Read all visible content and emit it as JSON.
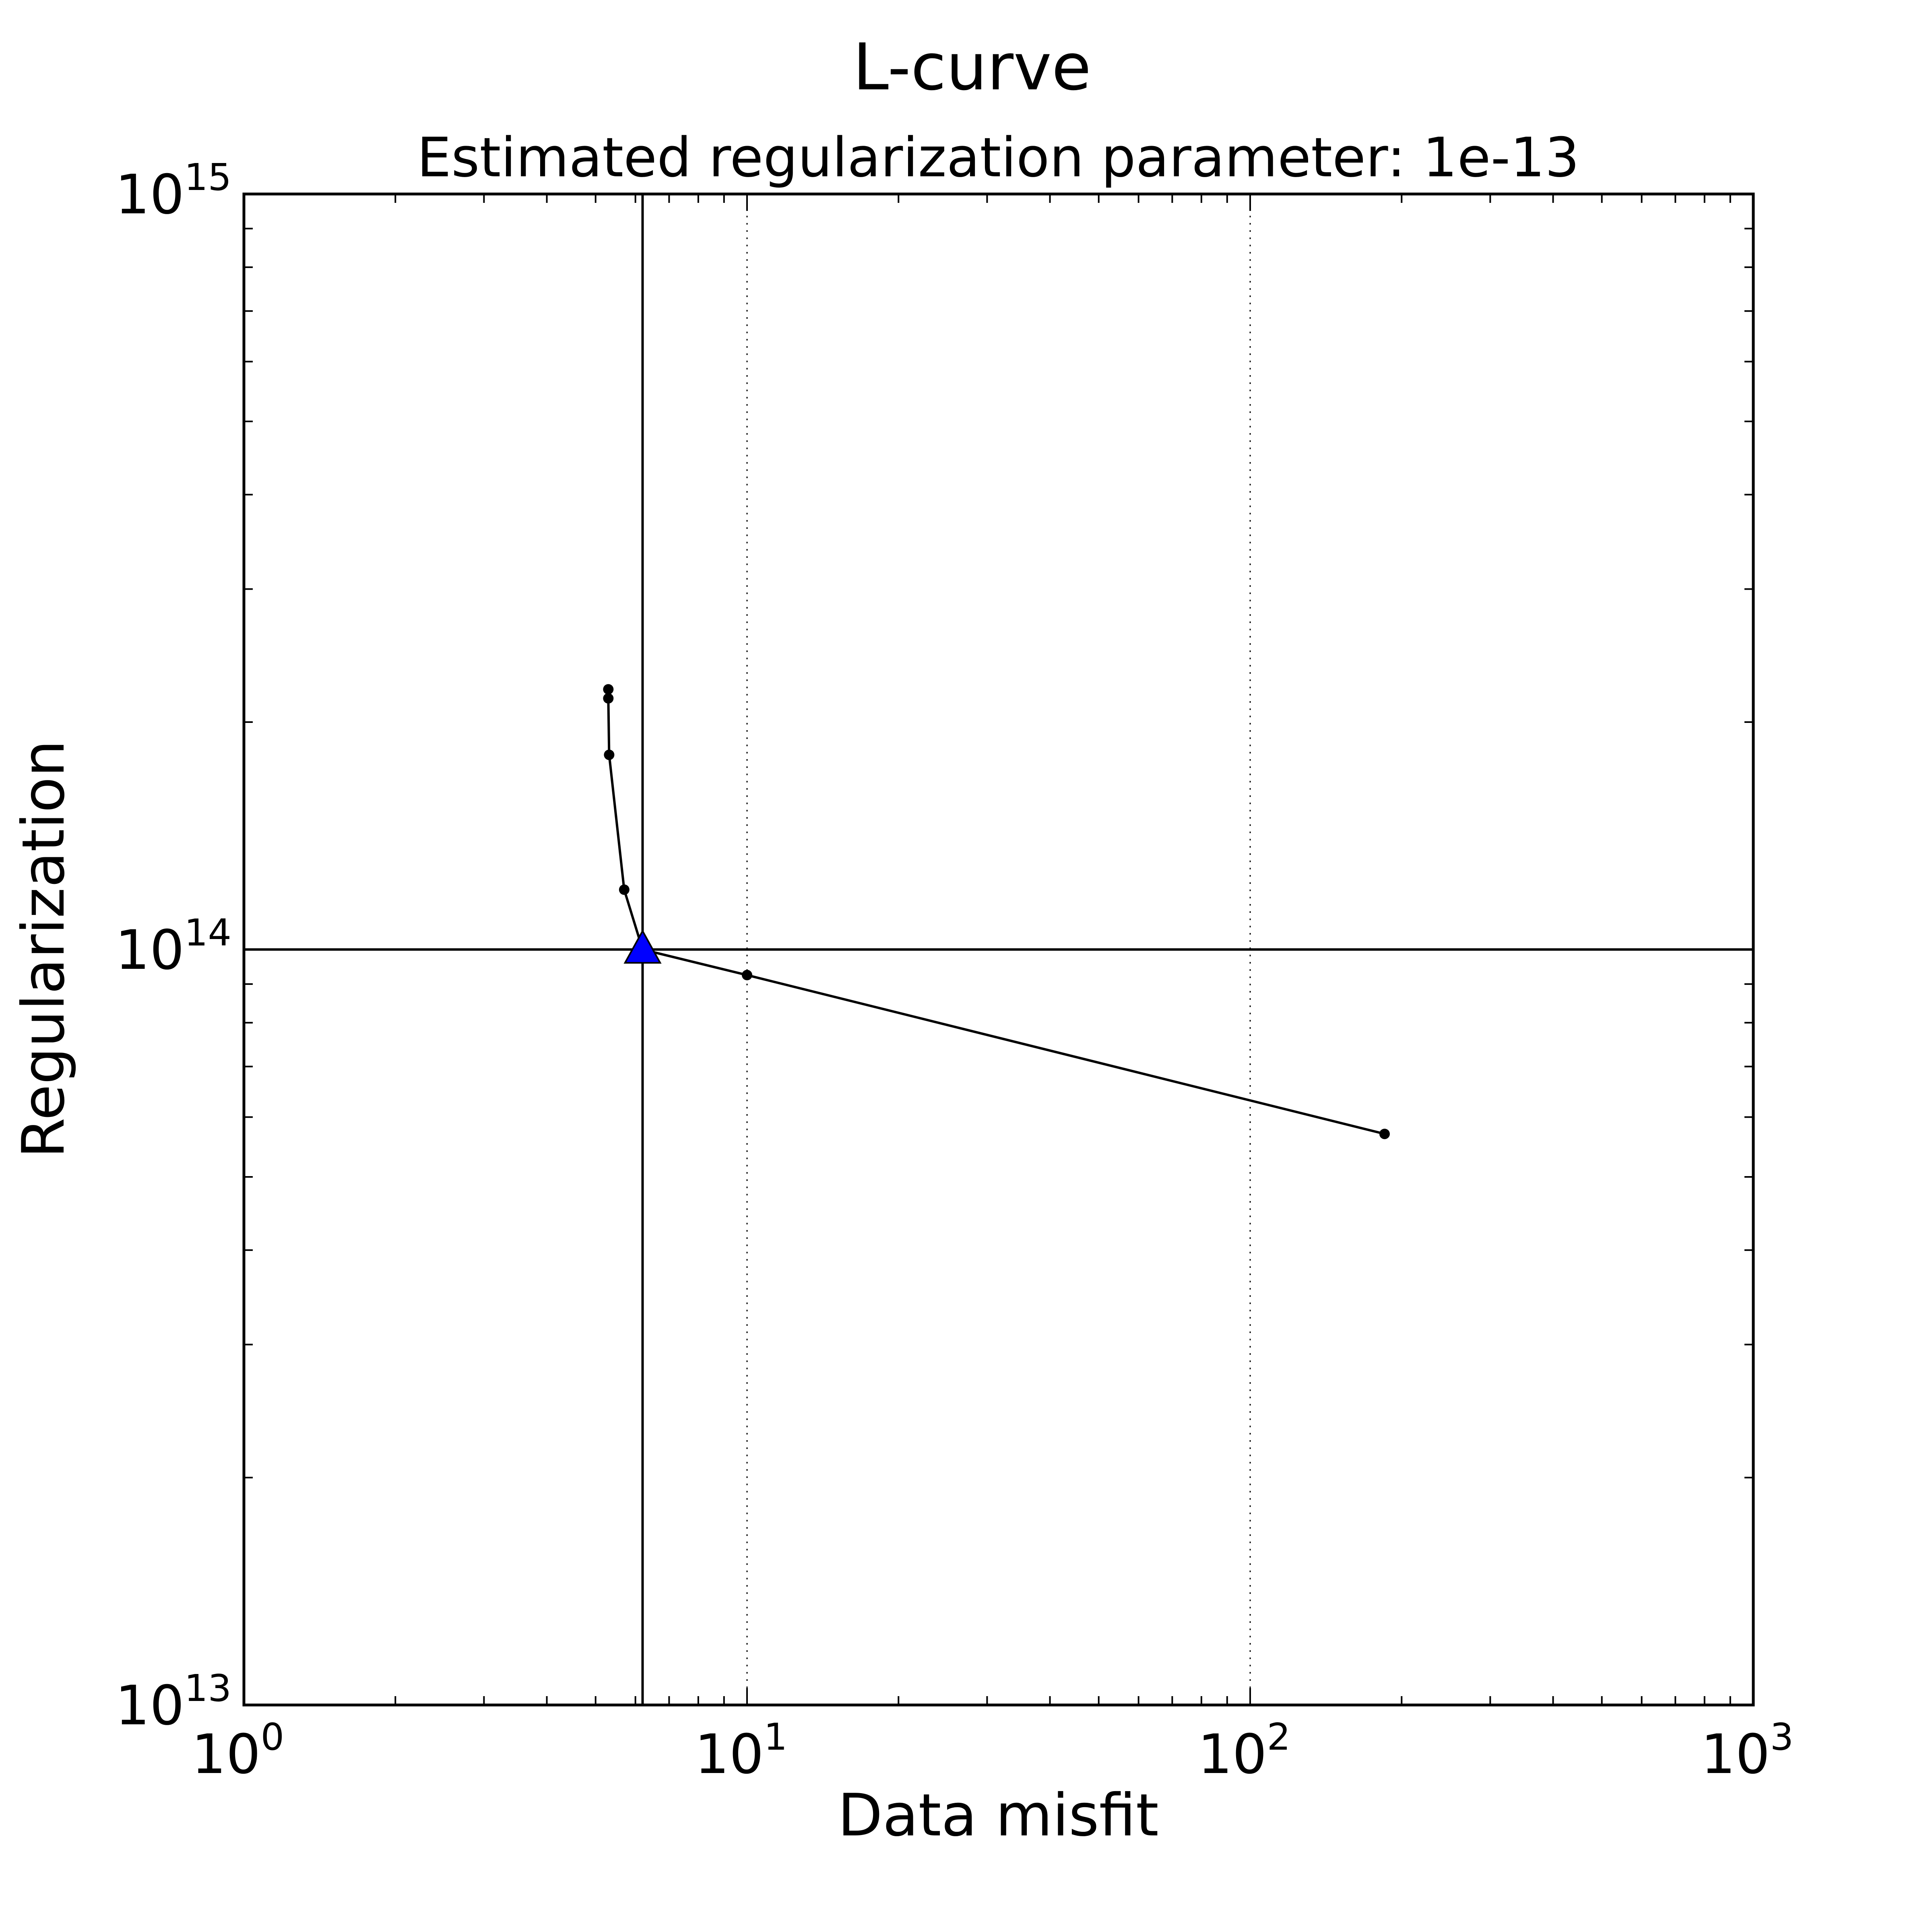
{
  "chart_data": {
    "type": "line",
    "title": "L-curve",
    "subtitle": "Estimated regularization parameter: 1e-13",
    "xlabel": "Data misfit",
    "ylabel": "Regularization",
    "x_scale": "log",
    "y_scale": "log",
    "xlim": [
      1,
      1000
    ],
    "ylim": [
      10000000000000,
      1000000000000000
    ],
    "x_ticks": [
      {
        "base": "10",
        "exp": "0",
        "value": 1
      },
      {
        "base": "10",
        "exp": "1",
        "value": 10
      },
      {
        "base": "10",
        "exp": "2",
        "value": 100
      },
      {
        "base": "10",
        "exp": "3",
        "value": 1000
      }
    ],
    "y_ticks": [
      {
        "base": "10",
        "exp": "13",
        "value": 10000000000000
      },
      {
        "base": "10",
        "exp": "14",
        "value": 100000000000000
      },
      {
        "base": "10",
        "exp": "15",
        "value": 1000000000000000
      }
    ],
    "grid": "dotted, major ticks",
    "series": [
      {
        "line_color": "#000000",
        "marker": "dot",
        "points": [
          {
            "x": 5.3,
            "y": 221000000000000
          },
          {
            "x": 5.3,
            "y": 215000000000000
          },
          {
            "x": 5.32,
            "y": 181000000000000
          },
          {
            "x": 5.7,
            "y": 120000000000000
          },
          {
            "x": 6.2,
            "y": 100000000000000
          },
          {
            "x": 10.0,
            "y": 92500000000000
          },
          {
            "x": 185.0,
            "y": 57000000000000
          }
        ]
      }
    ],
    "selected_point": {
      "x": 6.2,
      "y": 100000000000000,
      "marker": "triangle",
      "color": "#0000ff"
    },
    "reference_lines": {
      "vertical_x": 6.2,
      "horizontal_y": 100000000000000,
      "color": "#000000"
    }
  }
}
